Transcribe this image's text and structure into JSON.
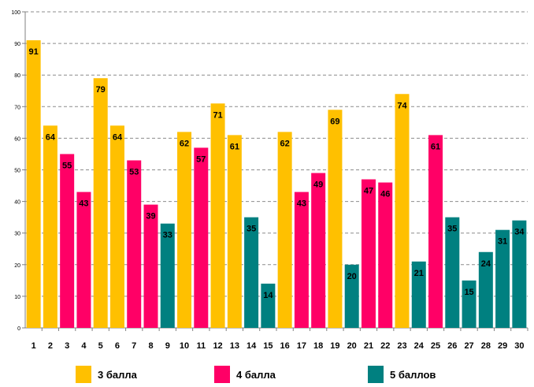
{
  "chart_data": {
    "type": "bar",
    "title": "",
    "xlabel": "",
    "ylabel": "",
    "ylim": [
      0,
      100
    ],
    "y_ticks": [
      0,
      10,
      20,
      30,
      40,
      50,
      60,
      70,
      80,
      90,
      100
    ],
    "grid": true,
    "categories": [
      "1",
      "2",
      "3",
      "4",
      "5",
      "6",
      "7",
      "8",
      "9",
      "10",
      "11",
      "12",
      "13",
      "14",
      "15",
      "16",
      "17",
      "18",
      "19",
      "20",
      "21",
      "22",
      "23",
      "24",
      "25",
      "26",
      "27",
      "28",
      "29",
      "30"
    ],
    "values": [
      91,
      64,
      55,
      43,
      79,
      64,
      53,
      39,
      33,
      62,
      57,
      71,
      61,
      35,
      14,
      62,
      43,
      49,
      69,
      20,
      47,
      46,
      74,
      21,
      61,
      35,
      15,
      24,
      31,
      34
    ],
    "groups": [
      3,
      3,
      4,
      4,
      3,
      3,
      4,
      4,
      5,
      3,
      4,
      3,
      3,
      5,
      5,
      3,
      4,
      4,
      3,
      5,
      4,
      4,
      3,
      5,
      4,
      5,
      5,
      5,
      5,
      5
    ],
    "series": [
      {
        "key": 3,
        "name": "3 балла",
        "color": "#FFC000"
      },
      {
        "key": 4,
        "name": "4 балла",
        "color": "#FF0066"
      },
      {
        "key": 5,
        "name": "5 баллов",
        "color": "#008080"
      }
    ],
    "legend_position": "bottom"
  }
}
